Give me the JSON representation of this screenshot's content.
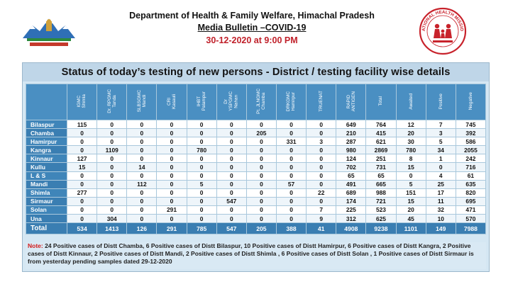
{
  "header": {
    "department": "Department of Health & Family Welfare, Himachal Pradesh",
    "bulletin": "Media Bulletin –COVID-19",
    "datetime": "30-12-2020 at 9:00 PM",
    "left_logo_icon": "state-emblem-icon",
    "right_logo_icon": "national-health-mission-icon",
    "right_logo_text": "NATIONAL HEALTH MISSION"
  },
  "panel": {
    "title": "Status of today’s testing of new persons - District / testing facility wise details"
  },
  "columns": [
    "IGMC\nShimla",
    "Dr. RPGMC\nTanda",
    "SLBSGMC\nMandi",
    "CRI\nKasauli",
    "IHBT\nPalampur",
    "Dr\nYSPGMC\nNahan",
    "Pt. JLNGMC\nChamba",
    "DRKGMC\nHamirpur",
    "TRUENAT",
    "RAPID\nANTIGEN",
    "Total",
    "Awaited",
    "Positive",
    "Negative"
  ],
  "rows": [
    {
      "district": "Bilaspur",
      "values": [
        "115",
        "0",
        "0",
        "0",
        "0",
        "0",
        "0",
        "0",
        "0",
        "649",
        "764",
        "12",
        "7",
        "745"
      ]
    },
    {
      "district": "Chamba",
      "values": [
        "0",
        "0",
        "0",
        "0",
        "0",
        "0",
        "205",
        "0",
        "0",
        "210",
        "415",
        "20",
        "3",
        "392"
      ]
    },
    {
      "district": "Hamirpur",
      "values": [
        "0",
        "0",
        "0",
        "0",
        "0",
        "0",
        "0",
        "331",
        "3",
        "287",
        "621",
        "30",
        "5",
        "586"
      ]
    },
    {
      "district": "Kangra",
      "values": [
        "0",
        "1109",
        "0",
        "0",
        "780",
        "0",
        "0",
        "0",
        "0",
        "980",
        "2869",
        "780",
        "34",
        "2055"
      ]
    },
    {
      "district": "Kinnaur",
      "values": [
        "127",
        "0",
        "0",
        "0",
        "0",
        "0",
        "0",
        "0",
        "0",
        "124",
        "251",
        "8",
        "1",
        "242"
      ]
    },
    {
      "district": "Kullu",
      "values": [
        "15",
        "0",
        "14",
        "0",
        "0",
        "0",
        "0",
        "0",
        "0",
        "702",
        "731",
        "15",
        "0",
        "716"
      ]
    },
    {
      "district": "L & S",
      "values": [
        "0",
        "0",
        "0",
        "0",
        "0",
        "0",
        "0",
        "0",
        "0",
        "65",
        "65",
        "0",
        "4",
        "61"
      ]
    },
    {
      "district": "Mandi",
      "values": [
        "0",
        "0",
        "112",
        "0",
        "5",
        "0",
        "0",
        "57",
        "0",
        "491",
        "665",
        "5",
        "25",
        "635"
      ]
    },
    {
      "district": "Shimla",
      "values": [
        "277",
        "0",
        "0",
        "0",
        "0",
        "0",
        "0",
        "0",
        "22",
        "689",
        "988",
        "151",
        "17",
        "820"
      ]
    },
    {
      "district": "Sirmaur",
      "values": [
        "0",
        "0",
        "0",
        "0",
        "0",
        "547",
        "0",
        "0",
        "0",
        "174",
        "721",
        "15",
        "11",
        "695"
      ]
    },
    {
      "district": "Solan",
      "values": [
        "0",
        "0",
        "0",
        "291",
        "0",
        "0",
        "0",
        "0",
        "7",
        "225",
        "523",
        "20",
        "32",
        "471"
      ]
    },
    {
      "district": "Una",
      "values": [
        "0",
        "304",
        "0",
        "0",
        "0",
        "0",
        "0",
        "0",
        "9",
        "312",
        "625",
        "45",
        "10",
        "570"
      ]
    }
  ],
  "total": {
    "label": "Total",
    "values": [
      "534",
      "1413",
      "126",
      "291",
      "785",
      "547",
      "205",
      "388",
      "41",
      "4908",
      "9238",
      "1101",
      "149",
      "7988"
    ]
  },
  "note": {
    "label": "Note:",
    "text": " 24 Positive cases of Distt  Chamba, 6  Positive cases of Distt  Bilaspur, 10  Positive cases of Distt  Hamirpur, 6  Positive cases of Distt  Kangra, 2  Positive cases of Distt  Kinnaur, 2  Positive cases of Distt  Mandi, 2  Positive cases of Distt  Shimla , 6  Positive cases of Distt  Solan ,  1 Positive cases of Distt Sirmaur  is from yesterday pending samples dated 29-12-2020"
  }
}
